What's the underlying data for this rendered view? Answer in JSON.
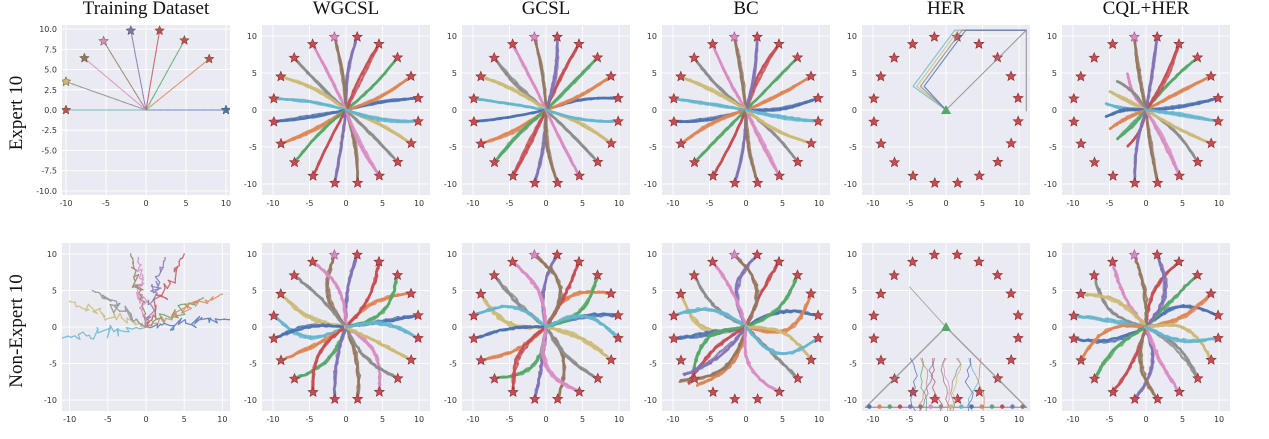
{
  "figure": {
    "columns": [
      "Training Dataset",
      "WGCSL",
      "GCSL",
      "BC",
      "HER",
      "CQL+HER"
    ],
    "rows": [
      "Expert 10",
      "Non-Expert 10"
    ]
  },
  "palette": [
    "#4c72b0",
    "#dd8452",
    "#55a868",
    "#c44e52",
    "#8172b3",
    "#937860",
    "#da8bc3",
    "#8c8c8c",
    "#ccb974",
    "#64b5cd"
  ],
  "chart_data": [
    {
      "type": "scatter",
      "row": "Expert 10",
      "column": "Training Dataset",
      "xticks": [
        -10,
        -5,
        0,
        5,
        10
      ],
      "yticks": [
        "10.0",
        "7.5",
        "5.0",
        "2.5",
        "0.0",
        "-2.5",
        "-5.0",
        "-7.5",
        "-10.0"
      ],
      "xlim": [
        -10.5,
        10.5
      ],
      "ylim": [
        -10.5,
        10.5
      ],
      "start": [
        0,
        0
      ],
      "goals": [
        [
          10,
          0
        ],
        [
          7.9,
          6.3
        ],
        [
          4.8,
          8.6
        ],
        [
          1.7,
          9.8
        ],
        [
          -1.9,
          9.8
        ],
        [
          -5.3,
          8.5
        ],
        [
          -7.7,
          6.4
        ],
        [
          -10,
          3.5
        ],
        [
          -10,
          0
        ]
      ],
      "trajectories": "straight lines from origin to each goal"
    },
    {
      "type": "scatter",
      "row": "Expert 10",
      "column": "WGCSL",
      "xticks": [
        -10,
        -5,
        0,
        5,
        10
      ],
      "yticks": [
        10,
        5,
        0,
        -5,
        -10
      ],
      "xlim": [
        -11.5,
        11.5
      ],
      "ylim": [
        -11.5,
        11.5
      ],
      "goals": "20 goals on a circle of radius 10",
      "trajectories": "near-straight to each goal"
    },
    {
      "type": "scatter",
      "row": "Expert 10",
      "column": "GCSL",
      "xticks": [
        -10,
        -5,
        0,
        5,
        10
      ],
      "yticks": [
        10,
        5,
        0,
        -5,
        -10
      ],
      "xlim": [
        -11.5,
        11.5
      ],
      "ylim": [
        -11.5,
        11.5
      ],
      "goals": "20 goals on a circle of radius 10",
      "trajectories": "near-straight to each goal"
    },
    {
      "type": "scatter",
      "row": "Expert 10",
      "column": "BC",
      "xticks": [
        -10,
        -5,
        0,
        5,
        10
      ],
      "yticks": [
        10,
        5,
        0,
        -5,
        -10
      ],
      "xlim": [
        -11.5,
        11.5
      ],
      "ylim": [
        -11.5,
        11.5
      ],
      "goals": "20 goals on a circle of radius 10",
      "trajectories": "near-straight to each goal"
    },
    {
      "type": "scatter",
      "row": "Expert 10",
      "column": "HER",
      "xticks": [
        -10,
        -5,
        0,
        5,
        10
      ],
      "yticks": [
        10,
        5,
        0,
        -5,
        -10
      ],
      "xlim": [
        -11.5,
        11.5
      ],
      "ylim": [
        -11.5,
        11.5
      ],
      "goals": "20 goals on a circle of radius 10",
      "trajectories": "collapsed toward upper-right corner"
    },
    {
      "type": "scatter",
      "row": "Expert 10",
      "column": "CQL+HER",
      "xticks": [
        -10,
        -5,
        0,
        5,
        10
      ],
      "yticks": [
        10,
        5,
        0,
        -5,
        -10
      ],
      "xlim": [
        -11.5,
        11.5
      ],
      "ylim": [
        -11.5,
        11.5
      ],
      "goals": "20 goals on a circle of radius 10",
      "trajectories": "partial, mostly right half"
    },
    {
      "type": "scatter",
      "row": "Non-Expert 10",
      "column": "Training Dataset",
      "xticks": [
        -10,
        -5,
        0,
        5,
        10
      ],
      "yticks": [
        10,
        5,
        0,
        -5,
        -10
      ],
      "xlim": [
        -11,
        11
      ],
      "ylim": [
        -11.5,
        11.5
      ],
      "trajectories": "noisy random-walk style paths"
    },
    {
      "type": "scatter",
      "row": "Non-Expert 10",
      "column": "WGCSL",
      "xticks": [
        -10,
        -5,
        0,
        5,
        10
      ],
      "yticks": [
        10,
        5,
        0,
        -5,
        -10
      ],
      "xlim": [
        -11.5,
        11.5
      ],
      "ylim": [
        -11.5,
        11.5
      ],
      "goals": "20 goals on a circle of radius 10",
      "trajectories": "curved but reaching each goal"
    },
    {
      "type": "scatter",
      "row": "Non-Expert 10",
      "column": "GCSL",
      "xticks": [
        -10,
        -5,
        0,
        5,
        10
      ],
      "yticks": [
        10,
        5,
        0,
        -5,
        -10
      ],
      "xlim": [
        -11.5,
        11.5
      ],
      "ylim": [
        -11.5,
        11.5
      ],
      "goals": "20 goals on a circle of radius 10",
      "trajectories": "curved, some deviating"
    },
    {
      "type": "scatter",
      "row": "Non-Expert 10",
      "column": "BC",
      "xticks": [
        -10,
        -5,
        0,
        5,
        10
      ],
      "yticks": [
        10,
        5,
        0,
        -5,
        -10
      ],
      "xlim": [
        -11.5,
        11.5
      ],
      "ylim": [
        -11.5,
        11.5
      ],
      "goals": "20 goals on a circle of radius 10",
      "trajectories": "many deviate to lower-left"
    },
    {
      "type": "scatter",
      "row": "Non-Expert 10",
      "column": "HER",
      "xticks": [
        -10,
        -5,
        0,
        5,
        10
      ],
      "yticks": [
        10,
        5,
        0,
        -5,
        -10
      ],
      "xlim": [
        -11.5,
        11.5
      ],
      "ylim": [
        -11.5,
        11.5
      ],
      "goals": "20 goals on a circle of radius 10",
      "trajectories": "triangle-shaped descent to bottom edge"
    },
    {
      "type": "scatter",
      "row": "Non-Expert 10",
      "column": "CQL+HER",
      "xticks": [
        -10,
        -5,
        0,
        5,
        10
      ],
      "yticks": [
        10,
        5,
        0,
        -5,
        -10
      ],
      "xlim": [
        -11.5,
        11.5
      ],
      "ylim": [
        -11.5,
        11.5
      ],
      "goals": "20 goals on a circle of radius 10",
      "trajectories": "curved, mostly reaching goals"
    }
  ]
}
